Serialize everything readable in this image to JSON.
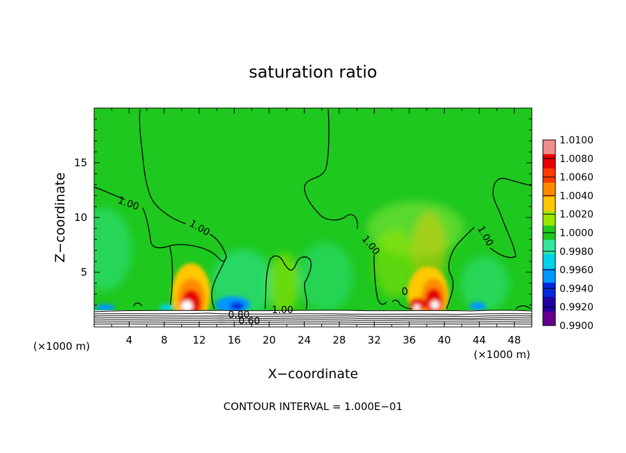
{
  "chart_data": {
    "type": "heatmap",
    "title": "saturation ratio",
    "xlabel": "X−coordinate",
    "ylabel": "Z−coordinate",
    "x_unit": "(×1000 m)",
    "xlim": [
      0,
      50
    ],
    "ylim": [
      0,
      20
    ],
    "x_ticks": [
      4,
      8,
      12,
      16,
      20,
      24,
      28,
      32,
      36,
      40,
      44,
      48
    ],
    "y_ticks": [
      5,
      10,
      15
    ],
    "footer": "CONTOUR INTERVAL = 1.000E−01",
    "colorbar": {
      "levels": [
        "1.0100",
        "1.0080",
        "1.0060",
        "1.0040",
        "1.0020",
        "1.0000",
        "0.9980",
        "0.9960",
        "0.9940",
        "0.9920",
        "0.9900"
      ],
      "colors": [
        "#f08c8c",
        "#e60000",
        "#ff3c00",
        "#ff8c00",
        "#ffc800",
        "#9be600",
        "#1ec81e",
        "#32e6a0",
        "#00d2e6",
        "#0096ff",
        "#0028dc",
        "#1e00a0",
        "#64008c"
      ]
    },
    "contour_labels": [
      "1.00",
      "1.00",
      "1.00",
      "1.00",
      "1.00",
      "0.80",
      "0.60"
    ],
    "hotspots": [
      {
        "x": 10.5,
        "z": 2.0,
        "peak": 1.01
      },
      {
        "x": 36.5,
        "z": 2.0,
        "peak": 1.008
      },
      {
        "x": 38.5,
        "z": 2.3,
        "peak": 1.01
      }
    ],
    "coldspots": [
      {
        "x": 15.5,
        "z": 1.8,
        "min": 0.992
      },
      {
        "x": 1.5,
        "z": 1.8,
        "min": 0.994
      },
      {
        "x": 43.0,
        "z": 1.8,
        "min": 0.994
      }
    ]
  }
}
